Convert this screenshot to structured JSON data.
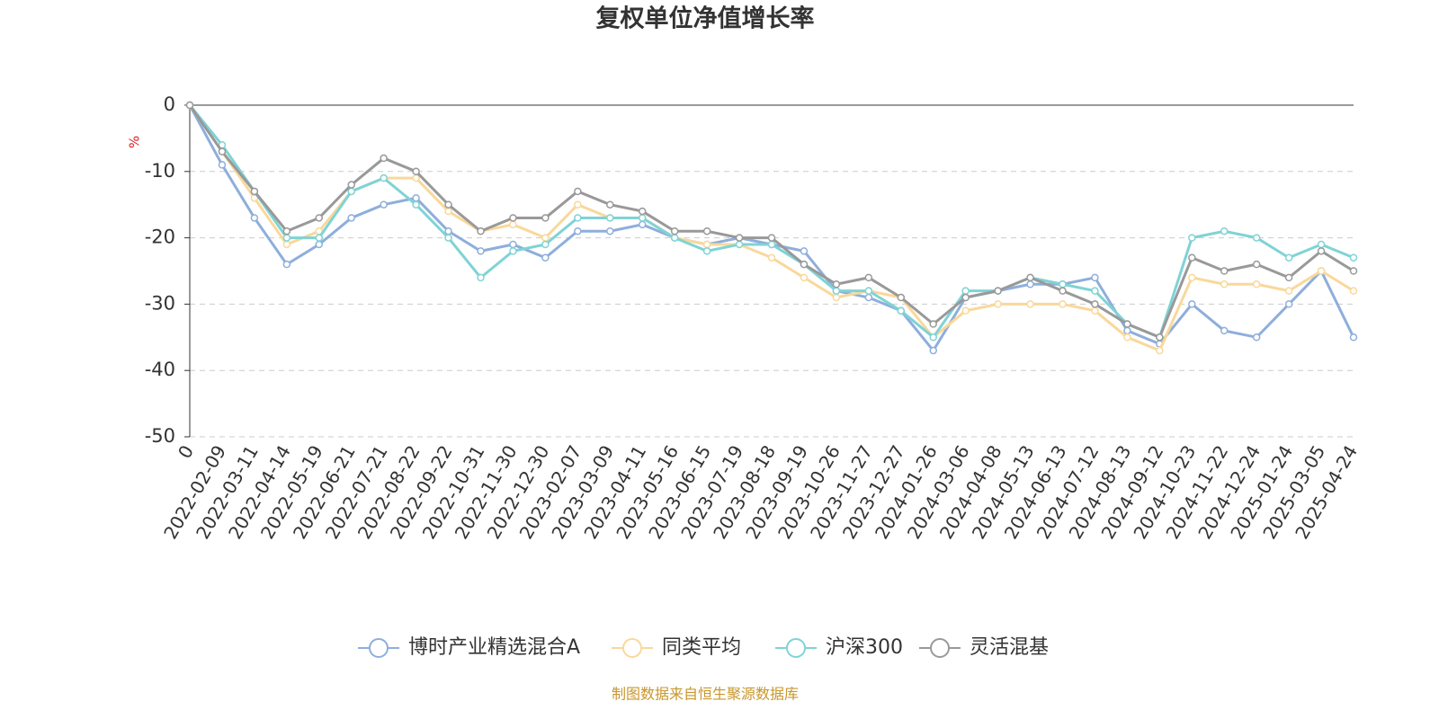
{
  "chart_data": {
    "type": "line",
    "title": "复权单位净值增长率",
    "y_label": "%",
    "source": "制图数据来自恒生聚源数据库",
    "categories": [
      "0",
      "2022-02-09",
      "2022-03-11",
      "2022-04-14",
      "2022-05-19",
      "2022-06-21",
      "2022-07-21",
      "2022-08-22",
      "2022-09-22",
      "2022-10-31",
      "2022-11-30",
      "2022-12-30",
      "2023-02-07",
      "2023-03-09",
      "2023-04-11",
      "2023-05-16",
      "2023-06-15",
      "2023-07-19",
      "2023-08-18",
      "2023-09-19",
      "2023-10-26",
      "2023-11-27",
      "2023-12-27",
      "2024-01-26",
      "2024-03-06",
      "2024-04-08",
      "2024-05-13",
      "2024-06-13",
      "2024-07-12",
      "2024-08-13",
      "2024-09-12",
      "2024-10-23",
      "2024-11-22",
      "2024-12-24",
      "2025-01-24",
      "2025-03-05",
      "2025-04-24"
    ],
    "series": [
      {
        "name": "博时产业精选混合A",
        "color": "#8eaedc",
        "values": [
          0,
          -9,
          -17,
          -24,
          -21,
          -17,
          -15,
          -14,
          -19,
          -22,
          -21,
          -23,
          -19,
          -19,
          -18,
          -20,
          -21,
          -20,
          -21,
          -22,
          -28,
          -29,
          -31,
          -37,
          -29,
          -28,
          -27,
          -27,
          -26,
          -34,
          -36,
          -30,
          -34,
          -35,
          -30,
          -25,
          -35
        ]
      },
      {
        "name": "同类平均",
        "color": "#f9d89a",
        "values": [
          0,
          -7,
          -14,
          -21,
          -19,
          -13,
          -11,
          -11,
          -16,
          -19,
          -18,
          -20,
          -15,
          -17,
          -17,
          -20,
          -21,
          -21,
          -23,
          -26,
          -29,
          -28,
          -29,
          -35,
          -31,
          -30,
          -30,
          -30,
          -31,
          -35,
          -37,
          -26,
          -27,
          -27,
          -28,
          -25,
          -28
        ]
      },
      {
        "name": "沪深300",
        "color": "#7fd3d5",
        "values": [
          0,
          -6,
          -13,
          -20,
          -20,
          -13,
          -11,
          -15,
          -20,
          -26,
          -22,
          -21,
          -17,
          -17,
          -17,
          -20,
          -22,
          -21,
          -21,
          -24,
          -28,
          -28,
          -31,
          -35,
          -28,
          -28,
          -26,
          -27,
          -28,
          -33,
          -35,
          -20,
          -19,
          -20,
          -23,
          -21,
          -23
        ]
      },
      {
        "name": "灵活混基",
        "color": "#999999",
        "values": [
          0,
          -7,
          -13,
          -19,
          -17,
          -12,
          -8,
          -10,
          -15,
          -19,
          -17,
          -17,
          -13,
          -15,
          -16,
          -19,
          -19,
          -20,
          -20,
          -24,
          -27,
          -26,
          -29,
          -33,
          -29,
          -28,
          -26,
          -28,
          -30,
          -33,
          -35,
          -23,
          -25,
          -24,
          -26,
          -22,
          -25
        ]
      }
    ],
    "ylim": [
      -50,
      0
    ],
    "yticks": [
      0,
      -10,
      -20,
      -30,
      -40,
      -50
    ],
    "grid": true
  }
}
